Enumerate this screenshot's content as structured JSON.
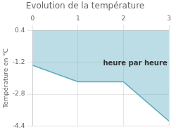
{
  "chart_data": {
    "type": "line",
    "title": "Evolution de la température",
    "y_label": "Température en °C",
    "x": [
      0,
      1.0,
      2.0,
      2.05,
      3.0
    ],
    "series": [
      {
        "values": [
          -1.35,
          -2.18,
          -2.18,
          -2.28,
          -4.15
        ],
        "color": "#5baac0"
      }
    ],
    "fill_top": 0.4,
    "xlim": [
      0,
      3
    ],
    "xticks": [
      0,
      1,
      2,
      3
    ],
    "ylim": [
      -4.4,
      0.4
    ],
    "yticks": [
      0.4,
      -1.2,
      -2.8,
      -4.4
    ],
    "grid": true,
    "annotations": [
      {
        "text": "heure par heure",
        "x": 1.55,
        "y": -1.1
      }
    ]
  }
}
